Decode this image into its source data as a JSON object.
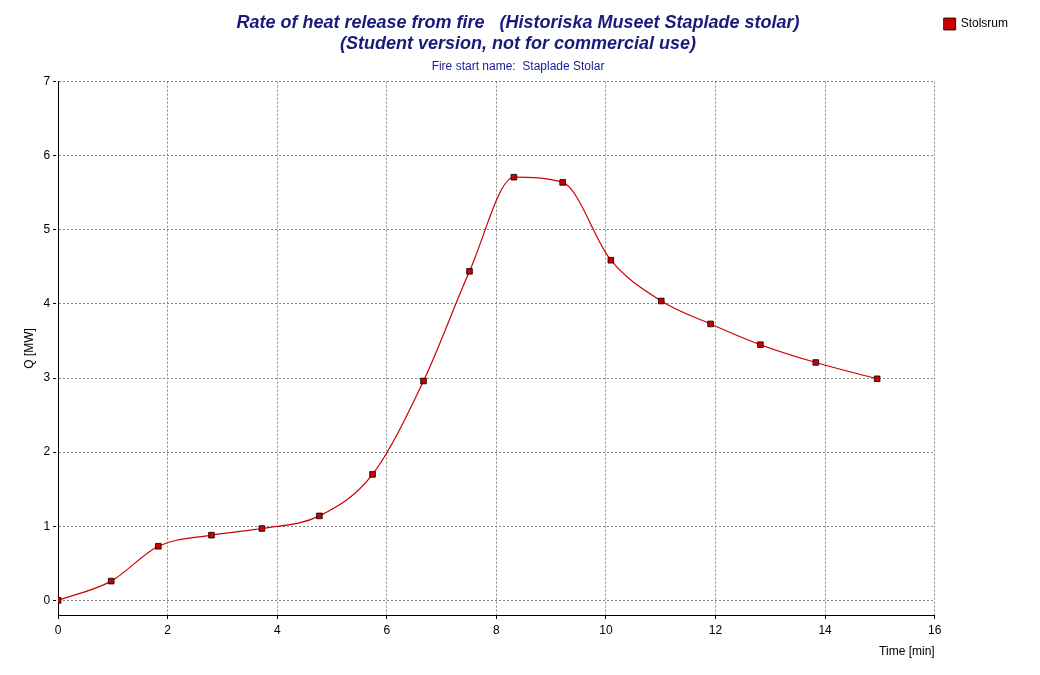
{
  "chart_data": {
    "type": "line",
    "title": "Rate of heat release from fire   (Historiska Museet Staplade stolar)\n(Student version, not for commercial use)",
    "subtitle": "Fire start name:  Staplade Stolar",
    "xlabel": "Time [min]",
    "ylabel": "Q [MW]",
    "x": [
      0,
      0.97,
      1.83,
      2.8,
      3.72,
      4.77,
      5.74,
      6.67,
      7.51,
      8.32,
      9.21,
      10.09,
      11.01,
      11.91,
      12.82,
      13.83,
      14.95
    ],
    "series": [
      {
        "name": "Stolsrum",
        "color": "#cc0000",
        "values": [
          0,
          0.26,
          0.73,
          0.88,
          0.97,
          1.14,
          1.7,
          2.96,
          4.44,
          5.71,
          5.64,
          4.59,
          4.04,
          3.73,
          3.45,
          3.21,
          2.99
        ]
      }
    ],
    "xlim": [
      0,
      16
    ],
    "xticks": [
      0,
      2,
      4,
      6,
      8,
      10,
      12,
      14,
      16
    ],
    "ylim": [
      -0.2,
      7
    ],
    "yticks": [
      0,
      1,
      2,
      3,
      4,
      5,
      6,
      7
    ],
    "grid": true,
    "legend": "top right",
    "marker": "square",
    "line_style": "solid"
  }
}
